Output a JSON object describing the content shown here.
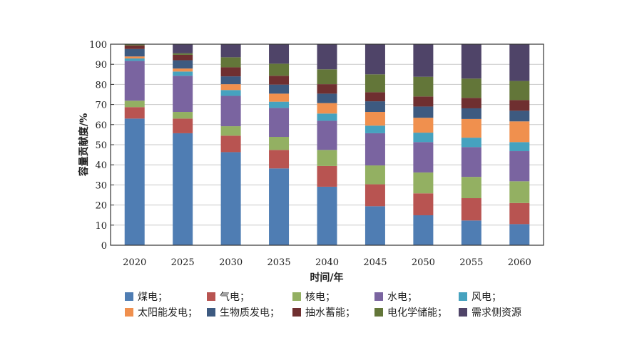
{
  "chart_data": {
    "type": "bar",
    "stacked": true,
    "xlabel": "时间/年",
    "ylabel": "容量贡献度/%",
    "ylim": [
      0,
      100
    ],
    "yticks": [
      0,
      10,
      20,
      30,
      40,
      50,
      60,
      70,
      80,
      90,
      100
    ],
    "grid": true,
    "legend_position": "bottom",
    "categories": [
      "2020",
      "2025",
      "2030",
      "2035",
      "2040",
      "2045",
      "2050",
      "2055",
      "2060"
    ],
    "series": [
      {
        "name": "煤电；",
        "color": "#4f7db3",
        "values": [
          63.0,
          55.7,
          46.3,
          38.2,
          29.1,
          19.4,
          14.9,
          12.3,
          10.5
        ]
      },
      {
        "name": "气电；",
        "color": "#b85451",
        "values": [
          5.7,
          7.3,
          8.2,
          9.2,
          10.3,
          10.9,
          10.9,
          11.1,
          10.5
        ]
      },
      {
        "name": "核电；",
        "color": "#93b062",
        "values": [
          3.2,
          3.3,
          4.7,
          6.5,
          8.0,
          9.4,
          10.4,
          10.6,
          10.8
        ]
      },
      {
        "name": "水电；",
        "color": "#7a64a0",
        "values": [
          19.8,
          18.0,
          15.1,
          14.4,
          14.5,
          16.0,
          15.1,
          14.8,
          15.0
        ]
      },
      {
        "name": "风电；",
        "color": "#46a2bf",
        "values": [
          1.2,
          2.1,
          2.9,
          3.1,
          3.6,
          3.8,
          4.7,
          4.7,
          4.5
        ]
      },
      {
        "name": "太阳能发电；",
        "color": "#f0904e",
        "values": [
          1.0,
          1.5,
          2.9,
          4.0,
          5.2,
          6.8,
          7.4,
          9.3,
          10.3
        ]
      },
      {
        "name": "生物质发电；",
        "color": "#3d5a80",
        "values": [
          3.7,
          4.1,
          3.9,
          4.5,
          4.7,
          5.3,
          5.6,
          5.3,
          5.3
        ]
      },
      {
        "name": "抽水蓄能；",
        "color": "#6f2f30",
        "values": [
          1.8,
          2.7,
          4.5,
          4.4,
          4.7,
          4.5,
          5.0,
          5.2,
          5.3
        ]
      },
      {
        "name": "电化学储能；",
        "color": "#637639",
        "values": [
          0.6,
          0.8,
          5.0,
          6.0,
          7.4,
          8.9,
          9.8,
          9.6,
          9.5
        ]
      },
      {
        "name": "需求侧资源",
        "color": "#4f4468",
        "values": [
          0.0,
          4.5,
          6.5,
          9.7,
          12.5,
          15.0,
          16.2,
          17.1,
          18.3
        ]
      }
    ]
  }
}
